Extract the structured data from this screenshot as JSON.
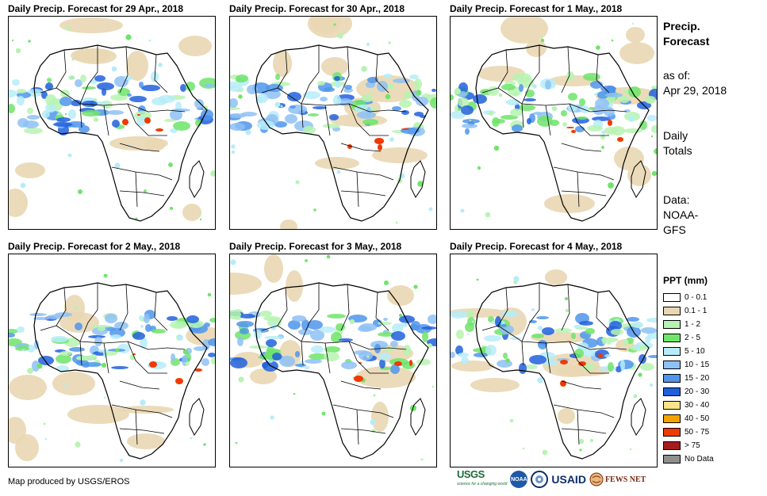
{
  "panels": [
    {
      "title": "Daily Precip. Forecast for 29 Apr., 2018"
    },
    {
      "title": "Daily Precip. Forecast for 30 Apr., 2018"
    },
    {
      "title": "Daily Precip. Forecast for 1 May., 2018"
    },
    {
      "title": "Daily Precip. Forecast for 2 May., 2018"
    },
    {
      "title": "Daily Precip. Forecast for 3 May., 2018"
    },
    {
      "title": "Daily Precip. Forecast for 4 May., 2018"
    }
  ],
  "side": {
    "heading_line1": "Precip.",
    "heading_line2": "Forecast",
    "asof_line1": "as of:",
    "asof_line2": "Apr 29, 2018",
    "daily_line1": "Daily",
    "daily_line2": "Totals",
    "data_line1": "Data:",
    "data_line2": "NOAA-",
    "data_line3": "GFS"
  },
  "legend": {
    "title": "PPT (mm)",
    "items": [
      {
        "label": "0 - 0.1",
        "color": "#ffffff"
      },
      {
        "label": "0.1 - 1",
        "color": "#e9d7b3"
      },
      {
        "label": "1 - 2",
        "color": "#b7f3b1"
      },
      {
        "label": "2 - 5",
        "color": "#6fe46a"
      },
      {
        "label": "5 - 10",
        "color": "#b6ecf9"
      },
      {
        "label": "10 - 15",
        "color": "#8ec1f5"
      },
      {
        "label": "15 - 20",
        "color": "#4f95ec"
      },
      {
        "label": "20 - 30",
        "color": "#2160dd"
      },
      {
        "label": "30 - 40",
        "color": "#f9e38b"
      },
      {
        "label": "40 - 50",
        "color": "#f5a300"
      },
      {
        "label": "50 - 75",
        "color": "#f03a00"
      },
      {
        "label": "> 75",
        "color": "#a51c1c"
      },
      {
        "label": "No Data",
        "color": "#8f8f8f"
      }
    ]
  },
  "credit": "Map produced by USGS/EROS",
  "logos": {
    "usgs": "USGS",
    "usgs_tagline": "science for a changing world",
    "noaa": "NOAA",
    "usaid": "USAID",
    "fews": "FEWS NET"
  }
}
